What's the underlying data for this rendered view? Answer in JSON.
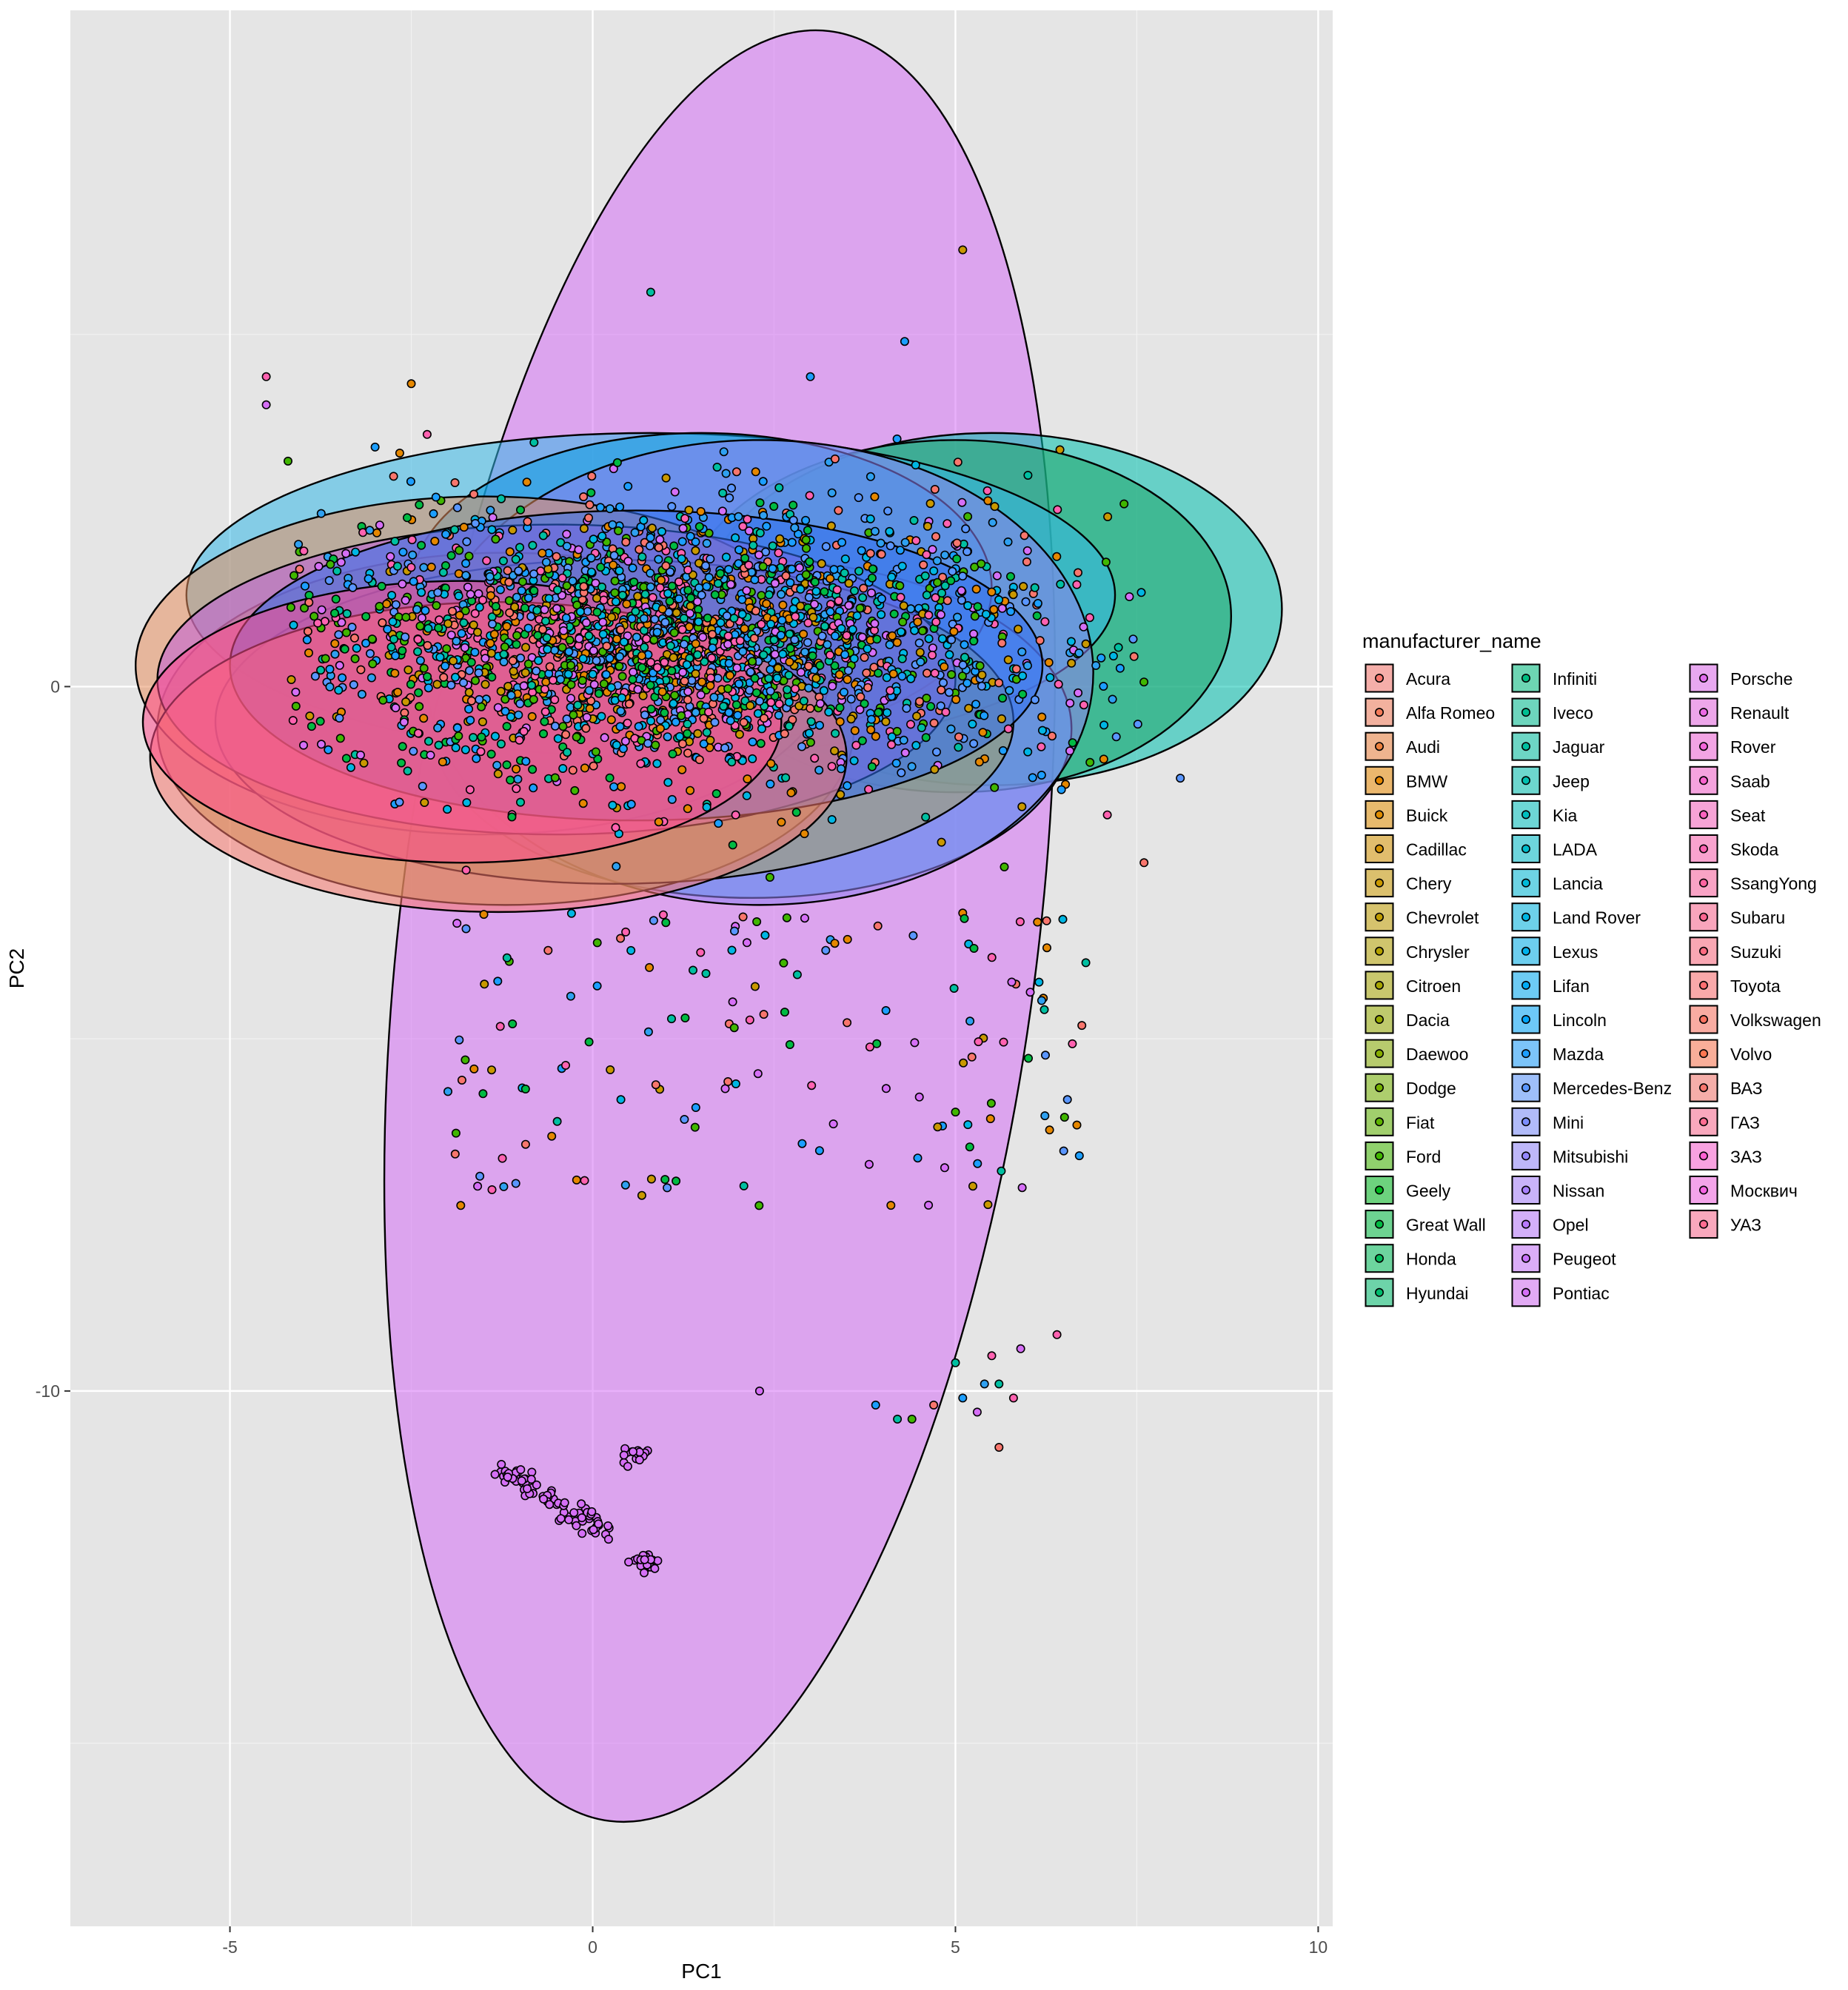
{
  "chart_data": {
    "type": "scatter",
    "title": "",
    "xlabel": "PC1",
    "ylabel": "PC2",
    "xlim": [
      -7.2,
      10.2
    ],
    "ylim": [
      -17.6,
      9.6
    ],
    "x_ticks": [
      -5,
      0,
      5,
      10
    ],
    "x_tick_labels": [
      "-5",
      "0",
      "5",
      "10"
    ],
    "y_ticks": [
      -10,
      0
    ],
    "y_tick_labels": [
      "-10",
      "0"
    ],
    "grid": true,
    "background": "#e5e5e5",
    "legend": {
      "title": "manufacturer_name",
      "placement": "right",
      "columns": 3
    },
    "series": [
      {
        "name": "Acura",
        "color": "#F8766D"
      },
      {
        "name": "Alfa Romeo",
        "color": "#F37B59"
      },
      {
        "name": "Audi",
        "color": "#ED813E"
      },
      {
        "name": "BMW",
        "color": "#E58700"
      },
      {
        "name": "Buick",
        "color": "#DE8C00"
      },
      {
        "name": "Cadillac",
        "color": "#D49200"
      },
      {
        "name": "Chery",
        "color": "#C99800"
      },
      {
        "name": "Chevrolet",
        "color": "#BF9C00"
      },
      {
        "name": "Chrysler",
        "color": "#B3A000"
      },
      {
        "name": "Citroen",
        "color": "#A5A400"
      },
      {
        "name": "Dacia",
        "color": "#96A900"
      },
      {
        "name": "Daewoo",
        "color": "#86AC00"
      },
      {
        "name": "Dodge",
        "color": "#74B000"
      },
      {
        "name": "Fiat",
        "color": "#5EB300"
      },
      {
        "name": "Ford",
        "color": "#40B600"
      },
      {
        "name": "Geely",
        "color": "#00B81F"
      },
      {
        "name": "Great Wall",
        "color": "#00BA42"
      },
      {
        "name": "Honda",
        "color": "#00BB59"
      },
      {
        "name": "Hyundai",
        "color": "#00BC6D"
      },
      {
        "name": "Infiniti",
        "color": "#00BD80"
      },
      {
        "name": "Iveco",
        "color": "#00BE91"
      },
      {
        "name": "Jaguar",
        "color": "#00BFA1"
      },
      {
        "name": "Jeep",
        "color": "#00BFB0"
      },
      {
        "name": "Kia",
        "color": "#00BFBE"
      },
      {
        "name": "LADA",
        "color": "#00BDCB"
      },
      {
        "name": "Lancia",
        "color": "#00BAD8"
      },
      {
        "name": "Land Rover",
        "color": "#00B6E3"
      },
      {
        "name": "Lexus",
        "color": "#00B1EC"
      },
      {
        "name": "Lifan",
        "color": "#00ABF5"
      },
      {
        "name": "Lincoln",
        "color": "#00A5FC"
      },
      {
        "name": "Mazda",
        "color": "#1C9EFF"
      },
      {
        "name": "Mercedes-Benz",
        "color": "#5A96FF"
      },
      {
        "name": "Mini",
        "color": "#7B8EFF"
      },
      {
        "name": "Mitsubishi",
        "color": "#9487FF"
      },
      {
        "name": "Nissan",
        "color": "#A880FF"
      },
      {
        "name": "Opel",
        "color": "#B979FF"
      },
      {
        "name": "Peugeot",
        "color": "#C974FE"
      },
      {
        "name": "Pontiac",
        "color": "#D56FF6"
      },
      {
        "name": "Porsche",
        "color": "#E06BEE"
      },
      {
        "name": "Renault",
        "color": "#EA68E4"
      },
      {
        "name": "Rover",
        "color": "#F265D9"
      },
      {
        "name": "Saab",
        "color": "#F863CD"
      },
      {
        "name": "Seat",
        "color": "#FC62BF"
      },
      {
        "name": "Skoda",
        "color": "#FF62B0"
      },
      {
        "name": "SsangYong",
        "color": "#FF63A0"
      },
      {
        "name": "Subaru",
        "color": "#FF6690"
      },
      {
        "name": "Suzuki",
        "color": "#FF6A80"
      },
      {
        "name": "Toyota",
        "color": "#FF6E70"
      },
      {
        "name": "Volkswagen",
        "color": "#FF7260"
      },
      {
        "name": "Volvo",
        "color": "#FF7650"
      },
      {
        "name": "ВАЗ",
        "color": "#F8766D"
      },
      {
        "name": "ГАЗ",
        "color": "#FF6C91"
      },
      {
        "name": "ЗАЗ",
        "color": "#FD61D1"
      },
      {
        "name": "Москвич",
        "color": "#F564E3"
      },
      {
        "name": "УАЗ",
        "color": "#FF6C91"
      }
    ],
    "ellipses": [
      {
        "series": "Skoda",
        "cx": 1.75,
        "cy": -3.4,
        "rx": 4.4,
        "ry": 12.8,
        "angle": 7,
        "color": "#D56FF6"
      },
      {
        "series": "Kia",
        "cx": 5.5,
        "cy": 1.1,
        "rx": 4.0,
        "ry": 2.5,
        "angle": 0,
        "color": "#00BFAE"
      },
      {
        "series": "Jeep",
        "cx": 5.0,
        "cy": 1.0,
        "rx": 3.8,
        "ry": 2.5,
        "angle": 0,
        "color": "#21A66A"
      },
      {
        "series": "Lexus",
        "cx": 0.8,
        "cy": 1.3,
        "rx": 6.4,
        "ry": 2.3,
        "angle": 0,
        "color": "#35B8E8"
      },
      {
        "series": "Mitsubishi",
        "cx": 2.2,
        "cy": -0.6,
        "rx": 4.4,
        "ry": 2.4,
        "angle": 0,
        "color": "#35ACEC"
      },
      {
        "series": "Nissan",
        "cx": 1.5,
        "cy": 1.4,
        "rx": 4.0,
        "ry": 2.2,
        "angle": 0,
        "color": "#0A9CE0"
      },
      {
        "series": "Pontiac",
        "cx": 2.3,
        "cy": 0.2,
        "rx": 4.6,
        "ry": 3.3,
        "angle": 0,
        "color": "#8F80F0"
      },
      {
        "series": "Dodge",
        "cx": -1.2,
        "cy": -0.6,
        "rx": 4.8,
        "ry": 2.5,
        "angle": 0,
        "color": "#A8A840"
      },
      {
        "series": "BMW",
        "cx": -1.5,
        "cy": 0.3,
        "rx": 4.8,
        "ry": 2.4,
        "angle": 0,
        "color": "#E89060"
      },
      {
        "series": "Chrysler",
        "cx": 0.3,
        "cy": -0.5,
        "rx": 5.5,
        "ry": 2.3,
        "angle": 0,
        "color": "#A0A060"
      },
      {
        "series": "Seat",
        "cx": -0.5,
        "cy": 0.1,
        "rx": 5.5,
        "ry": 2.2,
        "angle": 0,
        "color": "#C05CD8"
      },
      {
        "series": "Opel",
        "cx": 0.6,
        "cy": 0.3,
        "rx": 5.6,
        "ry": 2.2,
        "angle": 0,
        "color": "#3070F0"
      },
      {
        "series": "Acura",
        "cx": -1.3,
        "cy": -1.0,
        "rx": 4.8,
        "ry": 2.2,
        "angle": 0,
        "color": "#F8766D"
      },
      {
        "series": "ВАЗ",
        "cx": -1.8,
        "cy": -0.5,
        "rx": 4.4,
        "ry": 2.0,
        "angle": 0,
        "color": "#FF4D8C"
      }
    ],
    "annotations": []
  }
}
